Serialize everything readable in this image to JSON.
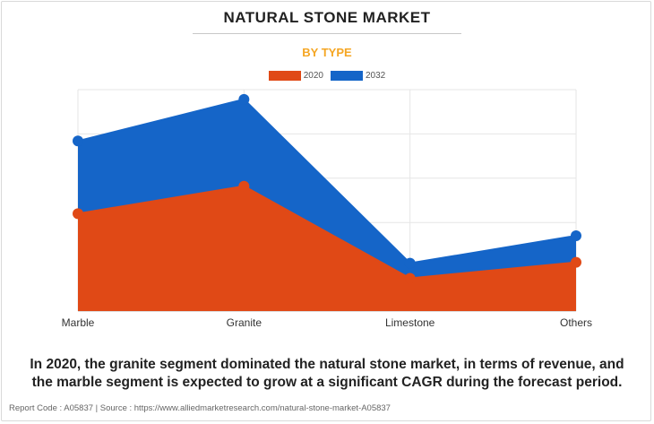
{
  "header": {
    "title": "NATURAL STONE MARKET",
    "subtitle": "BY TYPE"
  },
  "chart_data": {
    "type": "area",
    "categories": [
      "Marble",
      "Granite",
      "Limestone",
      "Others"
    ],
    "series": [
      {
        "name": "2020",
        "color": "#e04916",
        "values": [
          110,
          141,
          37,
          55
        ]
      },
      {
        "name": "2032",
        "color": "#1565c8",
        "values": [
          192,
          239,
          54,
          85
        ]
      }
    ],
    "ylim": [
      0,
      250
    ],
    "grid": true,
    "legend_position": "top-center",
    "stacked": false
  },
  "caption": "In 2020, the granite segment dominated the natural stone market, in terms of revenue, and the marble segment is expected to grow at a significant CAGR during the forecast period.",
  "footer": "Report Code : A05837  |  Source : https://www.alliedmarketresearch.com/natural-stone-market-A05837"
}
